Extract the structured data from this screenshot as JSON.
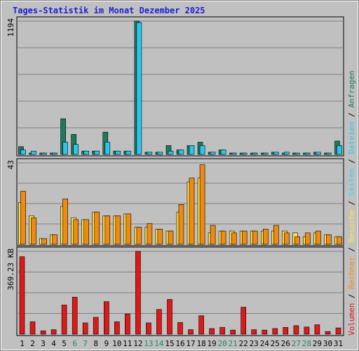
{
  "chart_data": {
    "type": "bar",
    "title": "Tages-Statistik im Monat Dezember 2025",
    "categories": [
      "1",
      "2",
      "3",
      "4",
      "5",
      "6",
      "7",
      "8",
      "9",
      "10",
      "11",
      "12",
      "13",
      "14",
      "15",
      "16",
      "17",
      "18",
      "19",
      "20",
      "21",
      "22",
      "23",
      "24",
      "25",
      "26",
      "27",
      "28",
      "29",
      "30",
      "31"
    ],
    "weekend_days": [
      "6",
      "7",
      "13",
      "14",
      "20",
      "21",
      "27",
      "28"
    ],
    "colors": {
      "anfragen": "#1e7a5e",
      "dateien": "#2cc6ec",
      "seiten": "#3ad0ec",
      "besuche": "#ffe24a",
      "rechner": "#f08a10",
      "volumen": "#e01818",
      "weekday_label": "#000000",
      "weekend_label": "#1a8a6a",
      "title": "#2020d0"
    },
    "panels": [
      {
        "ymax_label": "1194",
        "ylim": [
          0,
          1194
        ],
        "series": [
          {
            "name": "Anfragen",
            "values": [
              70,
              0,
              0,
              0,
              320,
              180,
              30,
              30,
              200,
              30,
              30,
              1194,
              20,
              20,
              80,
              40,
              80,
              110,
              20,
              40,
              10,
              10,
              10,
              10,
              20,
              10,
              0,
              0,
              20,
              10,
              120
            ]
          },
          {
            "name": "Dateien",
            "values": [
              40,
              30,
              10,
              10,
              110,
              90,
              30,
              30,
              110,
              30,
              30,
              1180,
              20,
              20,
              30,
              40,
              80,
              80,
              20,
              40,
              10,
              10,
              10,
              10,
              20,
              20,
              10,
              10,
              20,
              10,
              80
            ]
          }
        ]
      },
      {
        "ymax_label": "43",
        "ylim": [
          0,
          43
        ],
        "series": [
          {
            "name": "Seiten",
            "values": [
              0,
              0,
              0,
              0,
              0,
              0,
              0,
              0,
              0,
              0,
              0,
              0,
              0,
              0,
              0,
              0,
              0,
              0,
              0,
              0,
              0,
              0,
              0,
              0,
              0,
              0,
              0,
              0,
              0,
              0,
              0
            ]
          },
          {
            "name": "Besuche",
            "values": [
              22,
              15,
              3,
              5,
              20,
              14,
              13,
              17,
              15,
              15,
              16,
              9,
              9,
              8,
              7,
              17,
              33,
              35,
              6,
              7,
              7,
              7,
              7,
              7,
              7,
              7,
              6,
              4,
              6,
              5,
              4
            ]
          },
          {
            "name": "Rechner",
            "values": [
              28,
              14,
              3,
              5,
              24,
              13,
              13,
              17,
              15,
              15,
              16,
              9,
              11,
              8,
              7,
              21,
              35,
              42,
              10,
              7,
              6,
              7,
              7,
              8,
              10,
              6,
              4,
              6,
              7,
              5,
              4
            ]
          }
        ]
      },
      {
        "ymax_label": "369.23 KB",
        "ylim": [
          0,
          369.23
        ],
        "series": [
          {
            "name": "Volumen",
            "values": [
              345,
              55,
              15,
              20,
              130,
              165,
              50,
              75,
              145,
              55,
              90,
              369.23,
              50,
              110,
              155,
              52,
              20,
              82,
              25,
              30,
              18,
              120,
              20,
              18,
              25,
              30,
              38,
              32,
              42,
              12,
              28
            ]
          }
        ]
      }
    ],
    "legend_top_to_bottom": [
      "Anfragen",
      "Dateien",
      "Seiten",
      "Besuche",
      "Rechner",
      "Volumen"
    ]
  }
}
